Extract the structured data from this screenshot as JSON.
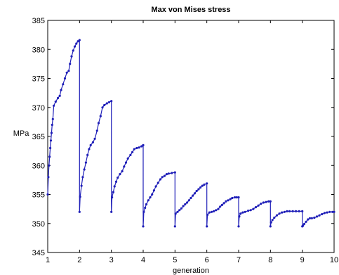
{
  "chart_data": {
    "type": "line",
    "title": "Max von Mises stress",
    "xlabel": "generation",
    "ylabel": "MPa",
    "xlim": [
      1,
      10
    ],
    "ylim": [
      345,
      385
    ],
    "xticks": [
      1,
      2,
      3,
      4,
      5,
      6,
      7,
      8,
      9,
      10
    ],
    "yticks": [
      345,
      350,
      355,
      360,
      365,
      370,
      375,
      380,
      385
    ],
    "grid": false,
    "series": [
      {
        "color": "#1f1fb8",
        "marker": "dot",
        "points": [
          [
            1.0,
            355.0
          ],
          [
            1.02,
            358.0
          ],
          [
            1.04,
            360.0
          ],
          [
            1.06,
            361.5
          ],
          [
            1.08,
            363.0
          ],
          [
            1.1,
            364.3
          ],
          [
            1.12,
            365.6
          ],
          [
            1.14,
            367.0
          ],
          [
            1.16,
            368.0
          ],
          [
            1.19,
            370.3
          ],
          [
            1.25,
            371.0
          ],
          [
            1.32,
            371.6
          ],
          [
            1.38,
            372.0
          ],
          [
            1.42,
            373.0
          ],
          [
            1.48,
            374.0
          ],
          [
            1.54,
            375.0
          ],
          [
            1.6,
            376.0
          ],
          [
            1.66,
            376.3
          ],
          [
            1.7,
            377.5
          ],
          [
            1.75,
            378.8
          ],
          [
            1.8,
            379.8
          ],
          [
            1.85,
            380.5
          ],
          [
            1.9,
            381.0
          ],
          [
            1.95,
            381.4
          ],
          [
            2.0,
            381.6
          ],
          [
            2.0,
            352.0
          ],
          [
            2.02,
            354.6
          ],
          [
            2.06,
            356.5
          ],
          [
            2.1,
            358.0
          ],
          [
            2.15,
            359.3
          ],
          [
            2.2,
            360.5
          ],
          [
            2.25,
            361.8
          ],
          [
            2.3,
            362.8
          ],
          [
            2.35,
            363.5
          ],
          [
            2.42,
            364.0
          ],
          [
            2.48,
            364.6
          ],
          [
            2.55,
            366.0
          ],
          [
            2.6,
            367.3
          ],
          [
            2.66,
            368.5
          ],
          [
            2.72,
            370.0
          ],
          [
            2.78,
            370.4
          ],
          [
            2.86,
            370.7
          ],
          [
            2.93,
            370.9
          ],
          [
            3.0,
            371.1
          ],
          [
            3.0,
            352.0
          ],
          [
            3.02,
            354.5
          ],
          [
            3.06,
            355.4
          ],
          [
            3.1,
            356.4
          ],
          [
            3.15,
            357.2
          ],
          [
            3.2,
            357.9
          ],
          [
            3.27,
            358.5
          ],
          [
            3.34,
            359.0
          ],
          [
            3.4,
            359.8
          ],
          [
            3.46,
            360.5
          ],
          [
            3.52,
            361.2
          ],
          [
            3.6,
            361.8
          ],
          [
            3.66,
            362.3
          ],
          [
            3.72,
            362.8
          ],
          [
            3.8,
            363.0
          ],
          [
            3.87,
            363.1
          ],
          [
            3.95,
            363.3
          ],
          [
            4.0,
            363.5
          ],
          [
            4.0,
            349.5
          ],
          [
            4.02,
            352.0
          ],
          [
            4.06,
            352.7
          ],
          [
            4.1,
            353.3
          ],
          [
            4.16,
            354.0
          ],
          [
            4.22,
            354.5
          ],
          [
            4.28,
            355.0
          ],
          [
            4.34,
            355.7
          ],
          [
            4.4,
            356.4
          ],
          [
            4.47,
            357.0
          ],
          [
            4.54,
            357.6
          ],
          [
            4.6,
            358.0
          ],
          [
            4.67,
            358.2
          ],
          [
            4.74,
            358.5
          ],
          [
            4.8,
            358.6
          ],
          [
            4.9,
            358.7
          ],
          [
            5.0,
            358.8
          ],
          [
            5.0,
            349.5
          ],
          [
            5.02,
            351.7
          ],
          [
            5.08,
            352.0
          ],
          [
            5.14,
            352.3
          ],
          [
            5.2,
            352.6
          ],
          [
            5.26,
            353.0
          ],
          [
            5.32,
            353.3
          ],
          [
            5.38,
            353.6
          ],
          [
            5.44,
            354.0
          ],
          [
            5.5,
            354.4
          ],
          [
            5.56,
            354.8
          ],
          [
            5.62,
            355.2
          ],
          [
            5.68,
            355.6
          ],
          [
            5.74,
            355.9
          ],
          [
            5.8,
            356.2
          ],
          [
            5.86,
            356.5
          ],
          [
            5.92,
            356.7
          ],
          [
            6.0,
            356.9
          ],
          [
            6.0,
            349.5
          ],
          [
            6.02,
            351.5
          ],
          [
            6.08,
            351.9
          ],
          [
            6.15,
            352.0
          ],
          [
            6.22,
            352.1
          ],
          [
            6.29,
            352.3
          ],
          [
            6.36,
            352.5
          ],
          [
            6.42,
            352.9
          ],
          [
            6.48,
            353.2
          ],
          [
            6.54,
            353.5
          ],
          [
            6.6,
            353.8
          ],
          [
            6.67,
            354.0
          ],
          [
            6.74,
            354.2
          ],
          [
            6.8,
            354.4
          ],
          [
            6.88,
            354.5
          ],
          [
            6.94,
            354.5
          ],
          [
            7.0,
            354.5
          ],
          [
            7.0,
            349.5
          ],
          [
            7.02,
            351.2
          ],
          [
            7.06,
            351.7
          ],
          [
            7.13,
            351.9
          ],
          [
            7.2,
            352.0
          ],
          [
            7.3,
            352.2
          ],
          [
            7.38,
            352.3
          ],
          [
            7.46,
            352.5
          ],
          [
            7.54,
            352.8
          ],
          [
            7.62,
            353.1
          ],
          [
            7.7,
            353.4
          ],
          [
            7.78,
            353.6
          ],
          [
            7.86,
            353.7
          ],
          [
            7.94,
            353.8
          ],
          [
            8.0,
            353.8
          ],
          [
            8.0,
            349.5
          ],
          [
            8.02,
            350.2
          ],
          [
            8.06,
            350.6
          ],
          [
            8.12,
            351.0
          ],
          [
            8.2,
            351.4
          ],
          [
            8.28,
            351.7
          ],
          [
            8.36,
            351.9
          ],
          [
            8.44,
            352.0
          ],
          [
            8.52,
            352.1
          ],
          [
            8.6,
            352.1
          ],
          [
            8.7,
            352.1
          ],
          [
            8.8,
            352.1
          ],
          [
            8.9,
            352.1
          ],
          [
            9.0,
            352.1
          ],
          [
            9.0,
            349.5
          ],
          [
            9.02,
            349.6
          ],
          [
            9.06,
            349.9
          ],
          [
            9.12,
            350.3
          ],
          [
            9.18,
            350.7
          ],
          [
            9.24,
            350.9
          ],
          [
            9.3,
            350.9
          ],
          [
            9.38,
            351.0
          ],
          [
            9.46,
            351.2
          ],
          [
            9.54,
            351.4
          ],
          [
            9.62,
            351.6
          ],
          [
            9.7,
            351.8
          ],
          [
            9.78,
            351.9
          ],
          [
            9.86,
            352.0
          ],
          [
            9.95,
            352.0
          ],
          [
            10.0,
            352.0
          ]
        ]
      }
    ]
  }
}
